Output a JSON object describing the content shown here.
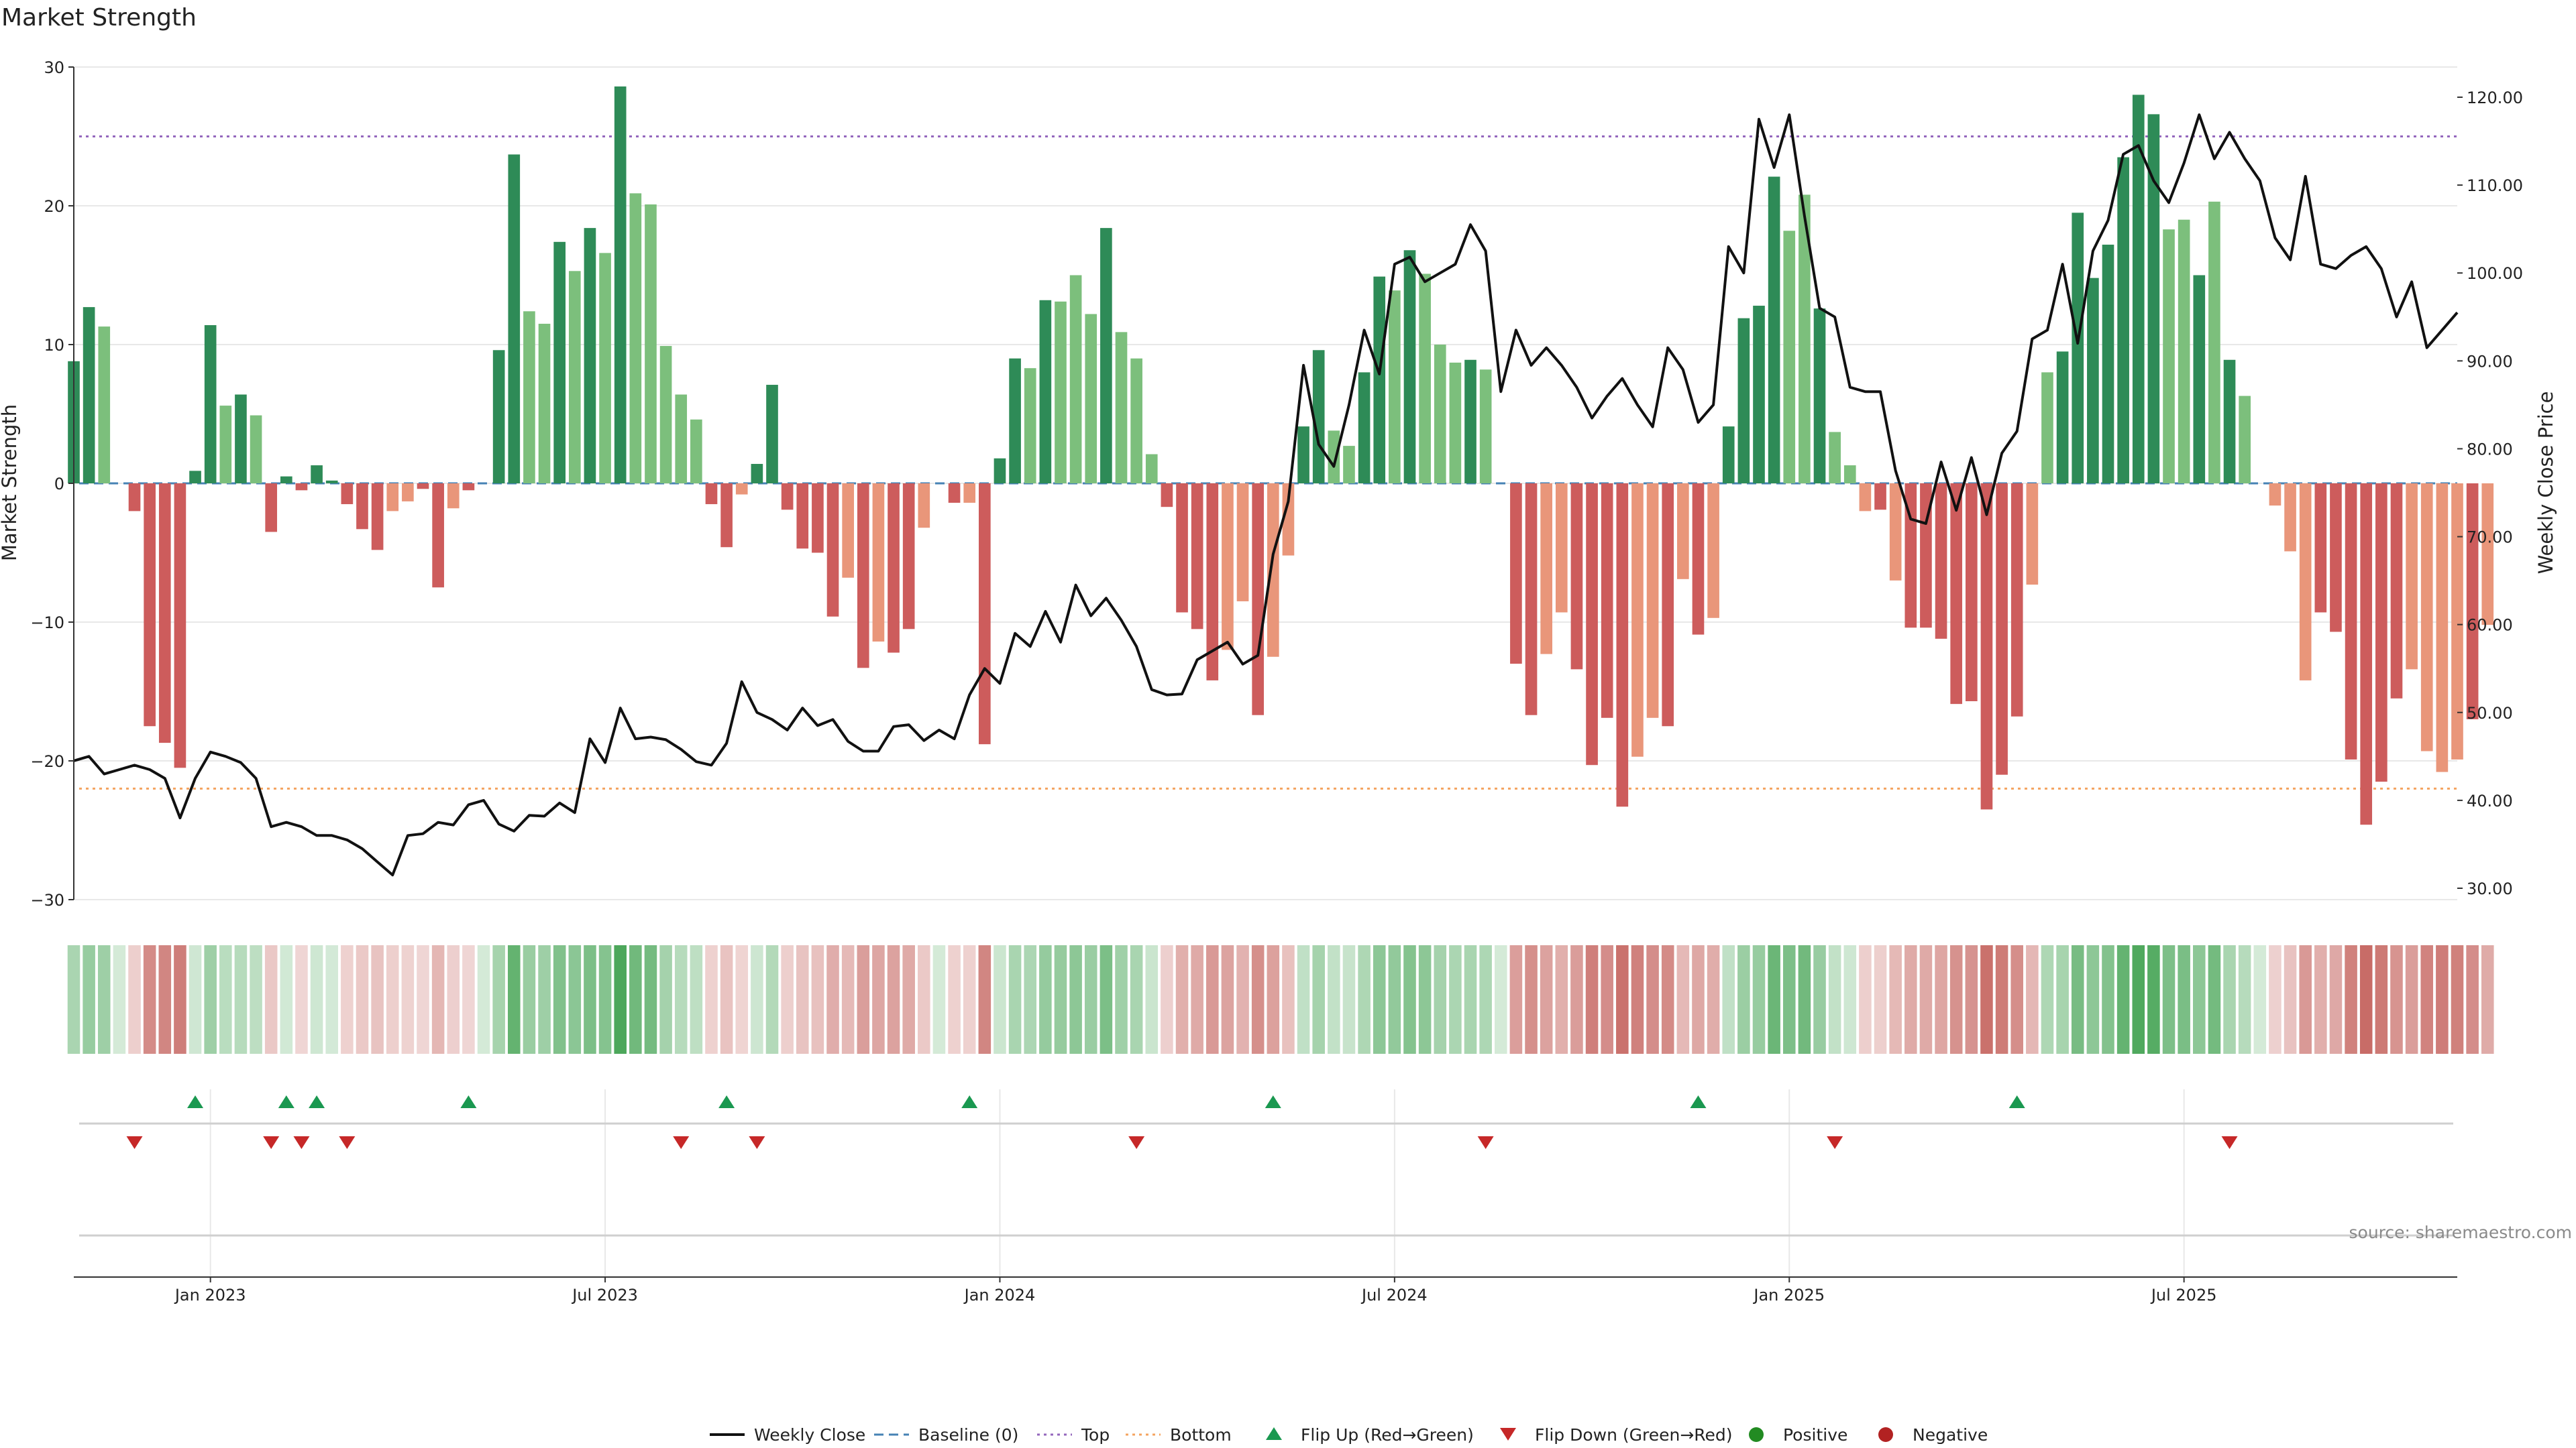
{
  "chart_data": {
    "type": "bar",
    "title": "Market Strength",
    "ylabel_left": "Market Strength",
    "ylabel_right": "Weekly Close Price",
    "ylim_left": [
      -30,
      30
    ],
    "yticks_left": [
      "30",
      "20",
      "10",
      "0",
      "−10",
      "−20",
      "−30"
    ],
    "yticks_left_values": [
      30,
      20,
      10,
      0,
      -10,
      -20,
      -30
    ],
    "ylim_right": [
      30,
      122
    ],
    "yticks_right": [
      "120.00",
      "110.00",
      "100.00",
      "90.00",
      "80.00",
      "70.00",
      "60.00",
      "50.00",
      "40.00",
      "30.00"
    ],
    "yticks_right_values": [
      120,
      110,
      100,
      90,
      80,
      70,
      60,
      50,
      40,
      30
    ],
    "x_week_range": [
      0,
      155
    ],
    "x_ticks": [
      {
        "label": "Jan 2023",
        "week": 9
      },
      {
        "label": "Jul 2023",
        "week": 35
      },
      {
        "label": "Jan 2024",
        "week": 61
      },
      {
        "label": "Jul 2024",
        "week": 87
      },
      {
        "label": "Jan 2025",
        "week": 113
      },
      {
        "label": "Jul 2025",
        "week": 139
      }
    ],
    "top_line": 25,
    "bottom_line": -22,
    "strength": [
      8.8,
      12.7,
      11.3,
      0,
      -2,
      -17.5,
      -18.7,
      -20.5,
      0.9,
      11.4,
      5.6,
      6.4,
      4.9,
      -3.5,
      0.5,
      -0.5,
      1.3,
      0.2,
      -1.5,
      -3.3,
      -4.8,
      -2,
      -1.3,
      -0.4,
      -7.5,
      -1.8,
      -0.5,
      0,
      9.6,
      23.7,
      12.4,
      11.5,
      17.4,
      15.3,
      18.4,
      16.6,
      28.6,
      20.9,
      20.1,
      9.9,
      6.4,
      4.6,
      -1.5,
      -4.6,
      -0.8,
      1.4,
      7.1,
      -1.9,
      -4.7,
      -5,
      -9.6,
      -6.8,
      -13.3,
      -11.4,
      -12.2,
      -10.5,
      -3.2,
      0,
      -1.4,
      -1.4,
      -18.8,
      1.8,
      9,
      8.3,
      13.2,
      13.1,
      15,
      12.2,
      18.4,
      10.9,
      9,
      2.1,
      -1.7,
      -9.3,
      -10.5,
      -14.2,
      -12,
      -8.5,
      -16.7,
      -12.5,
      -5.2,
      4.1,
      9.6,
      3.8,
      2.7,
      8,
      14.9,
      13.9,
      16.8,
      15.1,
      10,
      8.7,
      8.9,
      8.2,
      0,
      -13,
      -16.7,
      -12.3,
      -9.3,
      -13.4,
      -20.3,
      -16.9,
      -23.3,
      -19.7,
      -16.9,
      -17.5,
      -6.9,
      -10.9,
      -9.7,
      4.1,
      11.9,
      12.8,
      22.1,
      18.2,
      20.8,
      12.6,
      3.7,
      1.3,
      -2,
      -1.9,
      -7,
      -10.4,
      -10.4,
      -11.2,
      -15.9,
      -15.7,
      -23.5,
      -21,
      -16.8,
      -7.3,
      8,
      9.5,
      19.5,
      14.8,
      17.2,
      23.5,
      28,
      26.6,
      18.3,
      19,
      15,
      20.3,
      8.9,
      6.3,
      0,
      -1.6,
      -4.9,
      -14.2,
      -9.3,
      -10.7,
      -19.9,
      -24.6,
      -21.5,
      -15.5,
      -13.4,
      -19.3,
      -20.8,
      -19.9,
      -17,
      -10.2
    ],
    "alt_shade": [
      0,
      0,
      1,
      0,
      0,
      0,
      0,
      0,
      0,
      0,
      1,
      0,
      1,
      0,
      0,
      0,
      0,
      0,
      0,
      0,
      0,
      1,
      1,
      0,
      0,
      1,
      0,
      0,
      0,
      0,
      1,
      1,
      0,
      1,
      0,
      1,
      0,
      1,
      1,
      1,
      1,
      1,
      0,
      0,
      1,
      0,
      0,
      0,
      0,
      0,
      0,
      1,
      0,
      1,
      0,
      0,
      1,
      0,
      0,
      1,
      0,
      0,
      0,
      1,
      0,
      1,
      1,
      1,
      0,
      1,
      1,
      1,
      0,
      0,
      0,
      0,
      1,
      1,
      0,
      1,
      1,
      0,
      0,
      1,
      1,
      0,
      0,
      1,
      0,
      1,
      1,
      1,
      0,
      1,
      0,
      0,
      0,
      1,
      1,
      0,
      0,
      0,
      0,
      1,
      1,
      0,
      1,
      0,
      1,
      0,
      0,
      0,
      0,
      1,
      1,
      0,
      1,
      1,
      1,
      0,
      1,
      0,
      0,
      0,
      0,
      0,
      0,
      0,
      0,
      1,
      1,
      0,
      0,
      0,
      0,
      0,
      0,
      0,
      1,
      1,
      0,
      1,
      0,
      1,
      1,
      1,
      1,
      1,
      0,
      0,
      0,
      0,
      0,
      0,
      1,
      1,
      1,
      1,
      0,
      1
    ],
    "close": [
      [
        0,
        44.5
      ],
      [
        1,
        45
      ],
      [
        2,
        43
      ],
      [
        3,
        43.5
      ],
      [
        4,
        44
      ],
      [
        5,
        43.5
      ],
      [
        6,
        42.5
      ],
      [
        7,
        38
      ],
      [
        8,
        42.5
      ],
      [
        9,
        45.5
      ],
      [
        10,
        45
      ],
      [
        11,
        44.3
      ],
      [
        12,
        42.5
      ],
      [
        13,
        37
      ],
      [
        14,
        37.5
      ],
      [
        15,
        37
      ],
      [
        16,
        36
      ],
      [
        17,
        36
      ],
      [
        18,
        35.5
      ],
      [
        19,
        34.5
      ],
      [
        20,
        33
      ],
      [
        21,
        31.5
      ],
      [
        22,
        36
      ],
      [
        23,
        36.2
      ],
      [
        24,
        37.5
      ],
      [
        25,
        37.2
      ],
      [
        26,
        39.5
      ],
      [
        27,
        40
      ],
      [
        28,
        37.3
      ],
      [
        29,
        36.5
      ],
      [
        30,
        38.3
      ],
      [
        31,
        38.2
      ],
      [
        32,
        39.7
      ],
      [
        33,
        38.6
      ],
      [
        34,
        47
      ],
      [
        35,
        44.3
      ],
      [
        36,
        50.5
      ],
      [
        37,
        47
      ],
      [
        38,
        47.2
      ],
      [
        39,
        46.9
      ],
      [
        40,
        45.8
      ],
      [
        41,
        44.4
      ],
      [
        42,
        44
      ],
      [
        43,
        46.5
      ],
      [
        44,
        53.5
      ],
      [
        45,
        50
      ],
      [
        46,
        49.2
      ],
      [
        47,
        48
      ],
      [
        48,
        50.5
      ],
      [
        49,
        48.5
      ],
      [
        50,
        49.2
      ],
      [
        51,
        46.7
      ],
      [
        52,
        45.6
      ],
      [
        53,
        45.6
      ],
      [
        54,
        48.4
      ],
      [
        55,
        48.6
      ],
      [
        56,
        46.8
      ],
      [
        57,
        48
      ],
      [
        58,
        47
      ],
      [
        59,
        52
      ],
      [
        60,
        55
      ],
      [
        61,
        53.3
      ],
      [
        62,
        59
      ],
      [
        63,
        57.5
      ],
      [
        64,
        61.5
      ],
      [
        65,
        58
      ],
      [
        66,
        64.5
      ],
      [
        67,
        61
      ],
      [
        68,
        63
      ],
      [
        69,
        60.5
      ],
      [
        70,
        57.5
      ],
      [
        71,
        52.6
      ],
      [
        72,
        52
      ],
      [
        73,
        52.1
      ],
      [
        74,
        56
      ],
      [
        75,
        57
      ],
      [
        76,
        58
      ],
      [
        77,
        55.5
      ],
      [
        78,
        56.5
      ],
      [
        79,
        68
      ],
      [
        80,
        74
      ],
      [
        81,
        89.5
      ],
      [
        82,
        80.5
      ],
      [
        83,
        78
      ],
      [
        84,
        85
      ],
      [
        85,
        93.5
      ],
      [
        86,
        88.5
      ],
      [
        87,
        101
      ],
      [
        88,
        101.8
      ],
      [
        89,
        99
      ],
      [
        90,
        100
      ],
      [
        91,
        101
      ],
      [
        92,
        105.5
      ],
      [
        93,
        102.5
      ],
      [
        94,
        86.5
      ],
      [
        95,
        93.5
      ],
      [
        96,
        89.5
      ],
      [
        97,
        91.5
      ],
      [
        98,
        89.5
      ],
      [
        99,
        87
      ],
      [
        100,
        83.5
      ],
      [
        101,
        86
      ],
      [
        102,
        88
      ],
      [
        103,
        85
      ],
      [
        104,
        82.5
      ],
      [
        105,
        91.5
      ],
      [
        106,
        89
      ],
      [
        107,
        83
      ],
      [
        108,
        85
      ],
      [
        109,
        103
      ],
      [
        110,
        100
      ],
      [
        111,
        117.5
      ],
      [
        112,
        112
      ],
      [
        113,
        118
      ],
      [
        114,
        106.5
      ],
      [
        115,
        96
      ],
      [
        116,
        95
      ],
      [
        117,
        87
      ],
      [
        118,
        86.5
      ],
      [
        119,
        86.5
      ],
      [
        120,
        77.5
      ],
      [
        121,
        72
      ],
      [
        122,
        71.5
      ],
      [
        123,
        78.5
      ],
      [
        124,
        73
      ],
      [
        125,
        79
      ],
      [
        126,
        72.5
      ],
      [
        127,
        79.5
      ],
      [
        128,
        82
      ],
      [
        129,
        92.5
      ],
      [
        130,
        93.5
      ],
      [
        131,
        101
      ],
      [
        132,
        92
      ],
      [
        133,
        102.5
      ],
      [
        134,
        106
      ],
      [
        135,
        113.5
      ],
      [
        136,
        114.5
      ],
      [
        137,
        110.5
      ],
      [
        138,
        108
      ],
      [
        139,
        112.5
      ],
      [
        140,
        118
      ],
      [
        141,
        113
      ],
      [
        142,
        116
      ],
      [
        143,
        113
      ],
      [
        144,
        110.5
      ],
      [
        145,
        104
      ],
      [
        146,
        101.5
      ],
      [
        147,
        111
      ],
      [
        148,
        101
      ],
      [
        149,
        100.5
      ],
      [
        150,
        102
      ],
      [
        151,
        103
      ],
      [
        152,
        100.5
      ],
      [
        153,
        95
      ],
      [
        154,
        99
      ],
      [
        155,
        91.5
      ],
      [
        156,
        93.5
      ],
      [
        157,
        95.5
      ]
    ],
    "flip_up_weeks": [
      8,
      14,
      16,
      26,
      43,
      59,
      79,
      107,
      128
    ],
    "flip_down_weeks": [
      4,
      13,
      15,
      18,
      40,
      45,
      70,
      93,
      116,
      142
    ],
    "legend": [
      {
        "key": "weekly-close",
        "label": "Weekly Close"
      },
      {
        "key": "baseline",
        "label": "Baseline (0)"
      },
      {
        "key": "top",
        "label": "Top"
      },
      {
        "key": "bottom",
        "label": "Bottom"
      },
      {
        "key": "flip-up",
        "label": "Flip Up (Red→Green)"
      },
      {
        "key": "flip-down",
        "label": "Flip Down (Green→Red)"
      },
      {
        "key": "positive",
        "label": "Positive"
      },
      {
        "key": "negative",
        "label": "Negative"
      }
    ],
    "source": "source: sharemaestro.com"
  },
  "colors": {
    "green_dark": "#2e8b57",
    "green_light": "#7cbf7c",
    "red_dark": "#cd5c5c",
    "red_light": "#e9967a",
    "close_line": "#111111",
    "baseline": "#4682b4",
    "top": "#9467bd",
    "bottom": "#f4a460",
    "flip_up": "#1a9850",
    "flip_down": "#c62828",
    "positive_dot": "#228b22",
    "negative_dot": "#b22222",
    "grid": "#e8e8e8"
  }
}
